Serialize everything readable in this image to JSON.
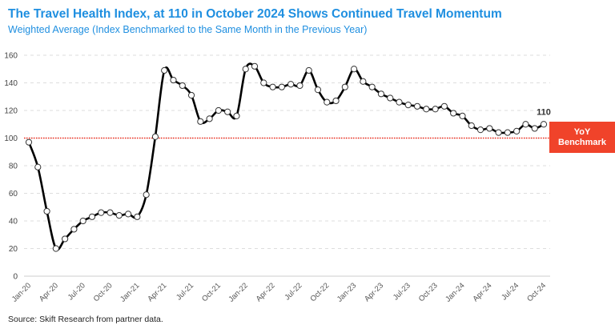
{
  "chart_data": {
    "type": "line",
    "title": "The Travel Health Index, at 110 in October 2024 Shows Continued Travel Momentum",
    "subtitle": "Weighted Average (Index Benchmarked to the Same Month in the Previous Year)",
    "source": "Source: Skift Research from partner data.",
    "xlabel": "",
    "ylabel": "",
    "ylim": [
      0,
      160
    ],
    "yticks": [
      0,
      20,
      40,
      60,
      80,
      100,
      120,
      140,
      160
    ],
    "grid": true,
    "x": [
      "Jan-20",
      "Feb-20",
      "Mar-20",
      "Apr-20",
      "May-20",
      "Jun-20",
      "Jul-20",
      "Aug-20",
      "Sep-20",
      "Oct-20",
      "Nov-20",
      "Dec-20",
      "Jan-21",
      "Feb-21",
      "Mar-21",
      "Apr-21",
      "May-21",
      "Jun-21",
      "Jul-21",
      "Aug-21",
      "Sep-21",
      "Oct-21",
      "Nov-21",
      "Dec-21",
      "Jan-22",
      "Feb-22",
      "Mar-22",
      "Apr-22",
      "May-22",
      "Jun-22",
      "Jul-22",
      "Aug-22",
      "Sep-22",
      "Oct-22",
      "Nov-22",
      "Dec-22",
      "Jan-23",
      "Feb-23",
      "Mar-23",
      "Apr-23",
      "May-23",
      "Jun-23",
      "Jul-23",
      "Aug-23",
      "Sep-23",
      "Oct-23",
      "Nov-23",
      "Dec-23",
      "Jan-24",
      "Feb-24",
      "Mar-24",
      "Apr-24",
      "May-24",
      "Jun-24",
      "Jul-24",
      "Aug-24",
      "Sep-24",
      "Oct-24"
    ],
    "series": [
      {
        "name": "Travel Health Index",
        "values": [
          97,
          79,
          47,
          20,
          27,
          34,
          40,
          43,
          46,
          46,
          44,
          45,
          43,
          59,
          101,
          149,
          142,
          138,
          131,
          112,
          114,
          120,
          119,
          116,
          150,
          152,
          140,
          137,
          137,
          139,
          138,
          149,
          135,
          126,
          127,
          137,
          150,
          141,
          137,
          132,
          129,
          126,
          124,
          123,
          121,
          121,
          123,
          118,
          116,
          109,
          106,
          107,
          104,
          104,
          105,
          110,
          107,
          110
        ]
      }
    ],
    "annotations": [
      {
        "text": "110",
        "at": "Oct-24"
      }
    ],
    "benchmark": {
      "value": 100,
      "label_line1": "YoY",
      "label_line2": "Benchmark",
      "color": "#f0432a"
    },
    "line_color": "#000000"
  }
}
